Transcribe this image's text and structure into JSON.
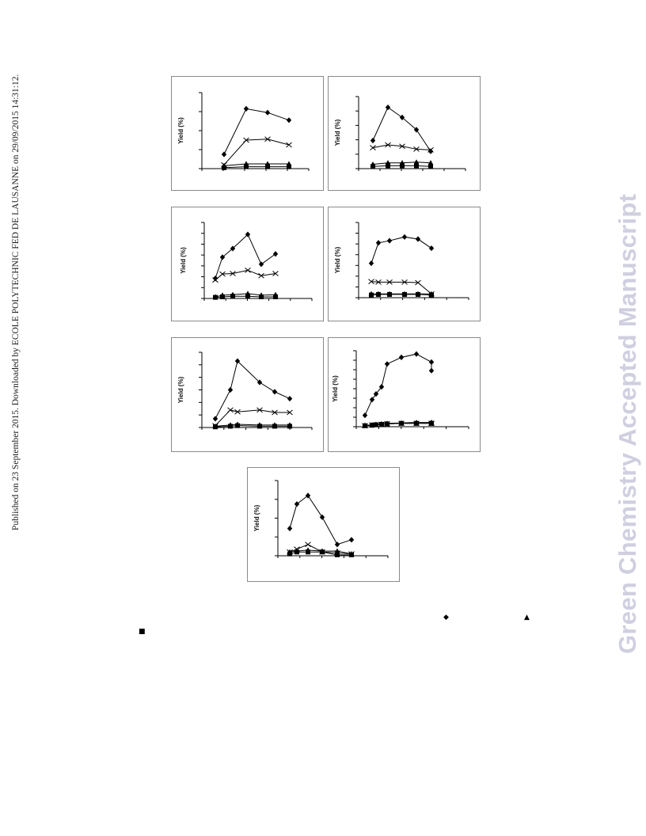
{
  "side_note": "Published on 23 September 2015. Downloaded by ECOLE POLYTECHNIC FED DE LAUSANNE on 29/09/2015 14:31:12.",
  "watermark": "Green Chemistry Accepted Manuscript",
  "legend_marks": {
    "diamond": "◆",
    "triangle": "▲",
    "square": "■"
  },
  "chart_data": [
    {
      "type": "line",
      "ylabel": "Yield (%)",
      "ylim": [
        0,
        4
      ],
      "series": [
        {
          "marker": "diamond",
          "x": [
            1,
            2,
            3,
            4
          ],
          "values": [
            0.75,
            3.15,
            2.95,
            2.55
          ]
        },
        {
          "marker": "cross",
          "x": [
            1,
            2,
            3,
            4
          ],
          "values": [
            0.2,
            1.5,
            1.55,
            1.25
          ]
        },
        {
          "marker": "triangle",
          "x": [
            1,
            2,
            3,
            4
          ],
          "values": [
            0.15,
            0.25,
            0.25,
            0.25
          ]
        },
        {
          "marker": "square",
          "x": [
            1,
            2,
            3,
            4
          ],
          "values": [
            0.05,
            0.1,
            0.1,
            0.1
          ]
        }
      ]
    },
    {
      "type": "line",
      "ylabel": "Yield (%)",
      "ylim": [
        0,
        5
      ],
      "series": [
        {
          "marker": "diamond",
          "x": [
            1,
            2,
            3,
            4,
            5
          ],
          "values": [
            1.95,
            4.25,
            3.55,
            2.7,
            1.2
          ]
        },
        {
          "marker": "cross",
          "x": [
            1,
            2,
            3,
            4,
            5
          ],
          "values": [
            1.45,
            1.65,
            1.55,
            1.35,
            1.3
          ]
        },
        {
          "marker": "triangle",
          "x": [
            1,
            2,
            3,
            4,
            5
          ],
          "values": [
            0.3,
            0.4,
            0.4,
            0.45,
            0.4
          ]
        },
        {
          "marker": "square",
          "x": [
            1,
            2,
            3,
            4,
            5
          ],
          "values": [
            0.15,
            0.2,
            0.2,
            0.2,
            0.15
          ]
        }
      ]
    },
    {
      "type": "line",
      "ylabel": "Yield (%)",
      "ylim": [
        0,
        7
      ],
      "series": [
        {
          "marker": "diamond",
          "x": [
            1,
            2,
            3,
            4,
            5,
            6
          ],
          "values": [
            1.85,
            3.8,
            4.6,
            5.9,
            3.15,
            4.1
          ]
        },
        {
          "marker": "cross",
          "x": [
            1,
            2,
            3,
            4,
            5,
            6
          ],
          "values": [
            1.7,
            2.25,
            2.3,
            2.6,
            2.1,
            2.3
          ]
        },
        {
          "marker": "triangle",
          "x": [
            1,
            2,
            3,
            4,
            5,
            6
          ],
          "values": [
            0.15,
            0.3,
            0.35,
            0.45,
            0.3,
            0.35
          ]
        },
        {
          "marker": "square",
          "x": [
            1,
            2,
            3,
            4,
            5,
            6
          ],
          "values": [
            0.1,
            0.15,
            0.2,
            0.2,
            0.15,
            0.15
          ]
        }
      ]
    },
    {
      "type": "line",
      "ylabel": "Yield (%)",
      "ylim": [
        0,
        7
      ],
      "series": [
        {
          "marker": "diamond",
          "x": [
            1,
            2,
            3,
            4,
            5,
            6
          ],
          "values": [
            3.2,
            5.1,
            5.3,
            5.65,
            5.45,
            4.6
          ]
        },
        {
          "marker": "cross",
          "x": [
            1,
            2,
            3,
            4,
            5,
            6
          ],
          "values": [
            1.5,
            1.45,
            1.45,
            1.45,
            1.4,
            0.35
          ]
        },
        {
          "marker": "triangle",
          "x": [
            1,
            2,
            3,
            4,
            5,
            6
          ],
          "values": [
            0.35,
            0.35,
            0.35,
            0.35,
            0.35,
            0.35
          ]
        },
        {
          "marker": "square",
          "x": [
            1,
            2,
            3,
            4,
            5,
            6
          ],
          "values": [
            0.25,
            0.3,
            0.3,
            0.3,
            0.3,
            0.25
          ]
        }
      ]
    },
    {
      "type": "line",
      "ylabel": "Yield (%)",
      "ylim": [
        0,
        6
      ],
      "series": [
        {
          "marker": "diamond",
          "x": [
            1,
            2,
            3,
            4,
            5,
            6
          ],
          "values": [
            0.7,
            3.0,
            5.3,
            3.6,
            2.85,
            2.3
          ]
        },
        {
          "marker": "cross",
          "x": [
            1,
            2,
            3,
            4,
            5,
            6
          ],
          "values": [
            0.15,
            1.4,
            1.25,
            1.4,
            1.2,
            1.2
          ]
        },
        {
          "marker": "triangle",
          "x": [
            1,
            2,
            3,
            4,
            5,
            6
          ],
          "values": [
            0.1,
            0.2,
            0.25,
            0.2,
            0.2,
            0.2
          ]
        },
        {
          "marker": "square",
          "x": [
            1,
            2,
            3,
            4,
            5,
            6
          ],
          "values": [
            0.05,
            0.1,
            0.15,
            0.1,
            0.1,
            0.1
          ]
        }
      ]
    },
    {
      "type": "line",
      "ylabel": "Yield (%)",
      "ylim": [
        0,
        8
      ],
      "series": [
        {
          "marker": "diamond",
          "x": [
            1,
            2,
            3,
            4,
            5,
            6,
            7,
            8,
            9
          ],
          "values": [
            1.2,
            2.85,
            3.45,
            4.2,
            6.6,
            7.3,
            7.65,
            6.8,
            5.9
          ]
        },
        {
          "marker": "cross",
          "x": [
            1,
            2,
            3,
            4,
            5,
            6,
            7,
            8,
            9
          ],
          "values": [
            0.1,
            0.2,
            0.2,
            0.25,
            0.3,
            0.35,
            0.35,
            0.35,
            0.35
          ]
        },
        {
          "marker": "triangle",
          "x": [
            1,
            2,
            3,
            4,
            5,
            6,
            7,
            8,
            9
          ],
          "values": [
            0.15,
            0.2,
            0.25,
            0.3,
            0.35,
            0.4,
            0.45,
            0.45,
            0.45
          ]
        },
        {
          "marker": "square",
          "x": [
            1,
            2,
            3,
            4,
            5,
            6,
            7,
            8,
            9
          ],
          "values": [
            0.1,
            0.15,
            0.2,
            0.25,
            0.3,
            0.35,
            0.35,
            0.35,
            0.35
          ]
        }
      ]
    },
    {
      "type": "line",
      "ylabel": "Yield (%)",
      "ylim": [
        0,
        4
      ],
      "series": [
        {
          "marker": "diamond",
          "x": [
            1,
            2,
            3,
            4,
            5,
            6
          ],
          "values": [
            1.45,
            2.75,
            3.2,
            2.05,
            0.6,
            0.85
          ]
        },
        {
          "marker": "cross",
          "x": [
            1,
            2,
            3,
            4,
            5,
            6
          ],
          "values": [
            0.2,
            0.35,
            0.6,
            0.2,
            0.15,
            0.1
          ]
        },
        {
          "marker": "triangle",
          "x": [
            1,
            2,
            3,
            4,
            5,
            6
          ],
          "values": [
            0.2,
            0.25,
            0.3,
            0.25,
            0.25,
            0.1
          ]
        },
        {
          "marker": "square",
          "x": [
            1,
            2,
            3,
            4,
            5,
            6
          ],
          "values": [
            0.1,
            0.2,
            0.2,
            0.2,
            0.05,
            0.05
          ]
        }
      ]
    }
  ]
}
